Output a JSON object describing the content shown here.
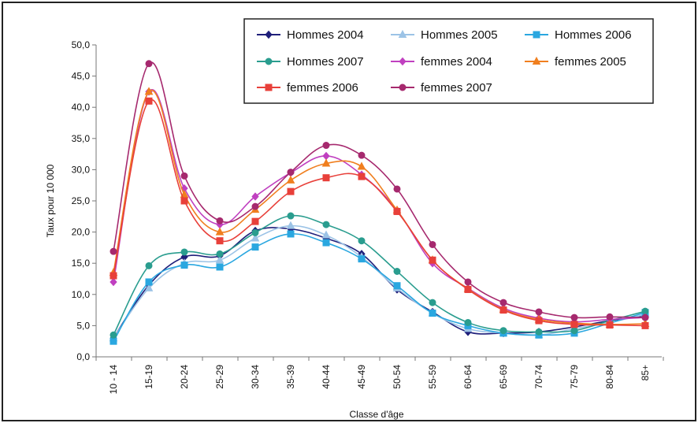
{
  "chart_data": {
    "type": "line",
    "xlabel": "Classe d'âge",
    "ylabel": "Taux pour 10 000",
    "ylim": [
      0,
      50
    ],
    "yticks": [
      "0,0",
      "5,0",
      "10,0",
      "15,0",
      "20,0",
      "25,0",
      "30,0",
      "35,0",
      "40,0",
      "45,0",
      "50,0"
    ],
    "categories": [
      "10 - 14",
      "15-19",
      "20-24",
      "25-29",
      "30-34",
      "35-39",
      "40-44",
      "45-49",
      "50-54",
      "55-59",
      "60-64",
      "65-69",
      "70-74",
      "75-79",
      "80-84",
      "85+"
    ],
    "legend_position": "top-right",
    "series": [
      {
        "name": "Hommes 2004",
        "color": "#1f1f7a",
        "marker": "diamond",
        "values": [
          3.0,
          11.5,
          16.0,
          16.2,
          20.2,
          20.5,
          19.0,
          16.5,
          10.8,
          7.2,
          4.0,
          3.8,
          4.0,
          4.8,
          5.8,
          6.5
        ]
      },
      {
        "name": "Hommes 2005",
        "color": "#9cc3e6",
        "marker": "triangle",
        "values": [
          3.0,
          11.0,
          15.0,
          15.5,
          19.0,
          21.0,
          19.5,
          16.0,
          11.0,
          7.0,
          4.5,
          3.8,
          3.5,
          4.5,
          5.5,
          6.8
        ]
      },
      {
        "name": "Hommes 2006",
        "color": "#2aa7e0",
        "marker": "square",
        "values": [
          2.5,
          12.0,
          14.7,
          14.4,
          17.6,
          19.7,
          18.3,
          15.7,
          11.4,
          7.0,
          5.0,
          3.8,
          3.5,
          3.8,
          5.4,
          7.1
        ]
      },
      {
        "name": "Hommes 2007",
        "color": "#2a9d8f",
        "marker": "circle",
        "values": [
          3.5,
          14.6,
          16.8,
          16.5,
          19.9,
          22.6,
          21.2,
          18.6,
          13.7,
          8.7,
          5.5,
          4.2,
          4.0,
          4.2,
          5.8,
          7.3
        ]
      },
      {
        "name": "femmes 2004",
        "color": "#c040c0",
        "marker": "diamond",
        "values": [
          12.0,
          42.5,
          27.0,
          21.2,
          25.7,
          29.5,
          32.2,
          29.2,
          23.5,
          15.0,
          11.0,
          7.8,
          6.2,
          5.6,
          6.0,
          6.3
        ]
      },
      {
        "name": "femmes 2005",
        "color": "#f07f1f",
        "marker": "triangle",
        "values": [
          13.5,
          42.5,
          26.0,
          20.0,
          23.6,
          28.3,
          31.0,
          30.5,
          23.5,
          15.5,
          10.9,
          7.6,
          6.0,
          5.4,
          5.2,
          5.3
        ]
      },
      {
        "name": "femmes 2006",
        "color": "#e8403a",
        "marker": "square",
        "values": [
          13.0,
          41.0,
          25.0,
          18.6,
          21.7,
          26.5,
          28.7,
          28.9,
          23.3,
          15.5,
          10.8,
          7.5,
          5.8,
          5.2,
          5.1,
          5.0
        ]
      },
      {
        "name": "femmes 2007",
        "color": "#a6296e",
        "marker": "circle",
        "values": [
          16.9,
          47.0,
          29.0,
          21.8,
          24.1,
          29.6,
          33.9,
          32.3,
          26.9,
          18.0,
          12.0,
          8.7,
          7.2,
          6.3,
          6.4,
          6.3
        ]
      }
    ]
  }
}
